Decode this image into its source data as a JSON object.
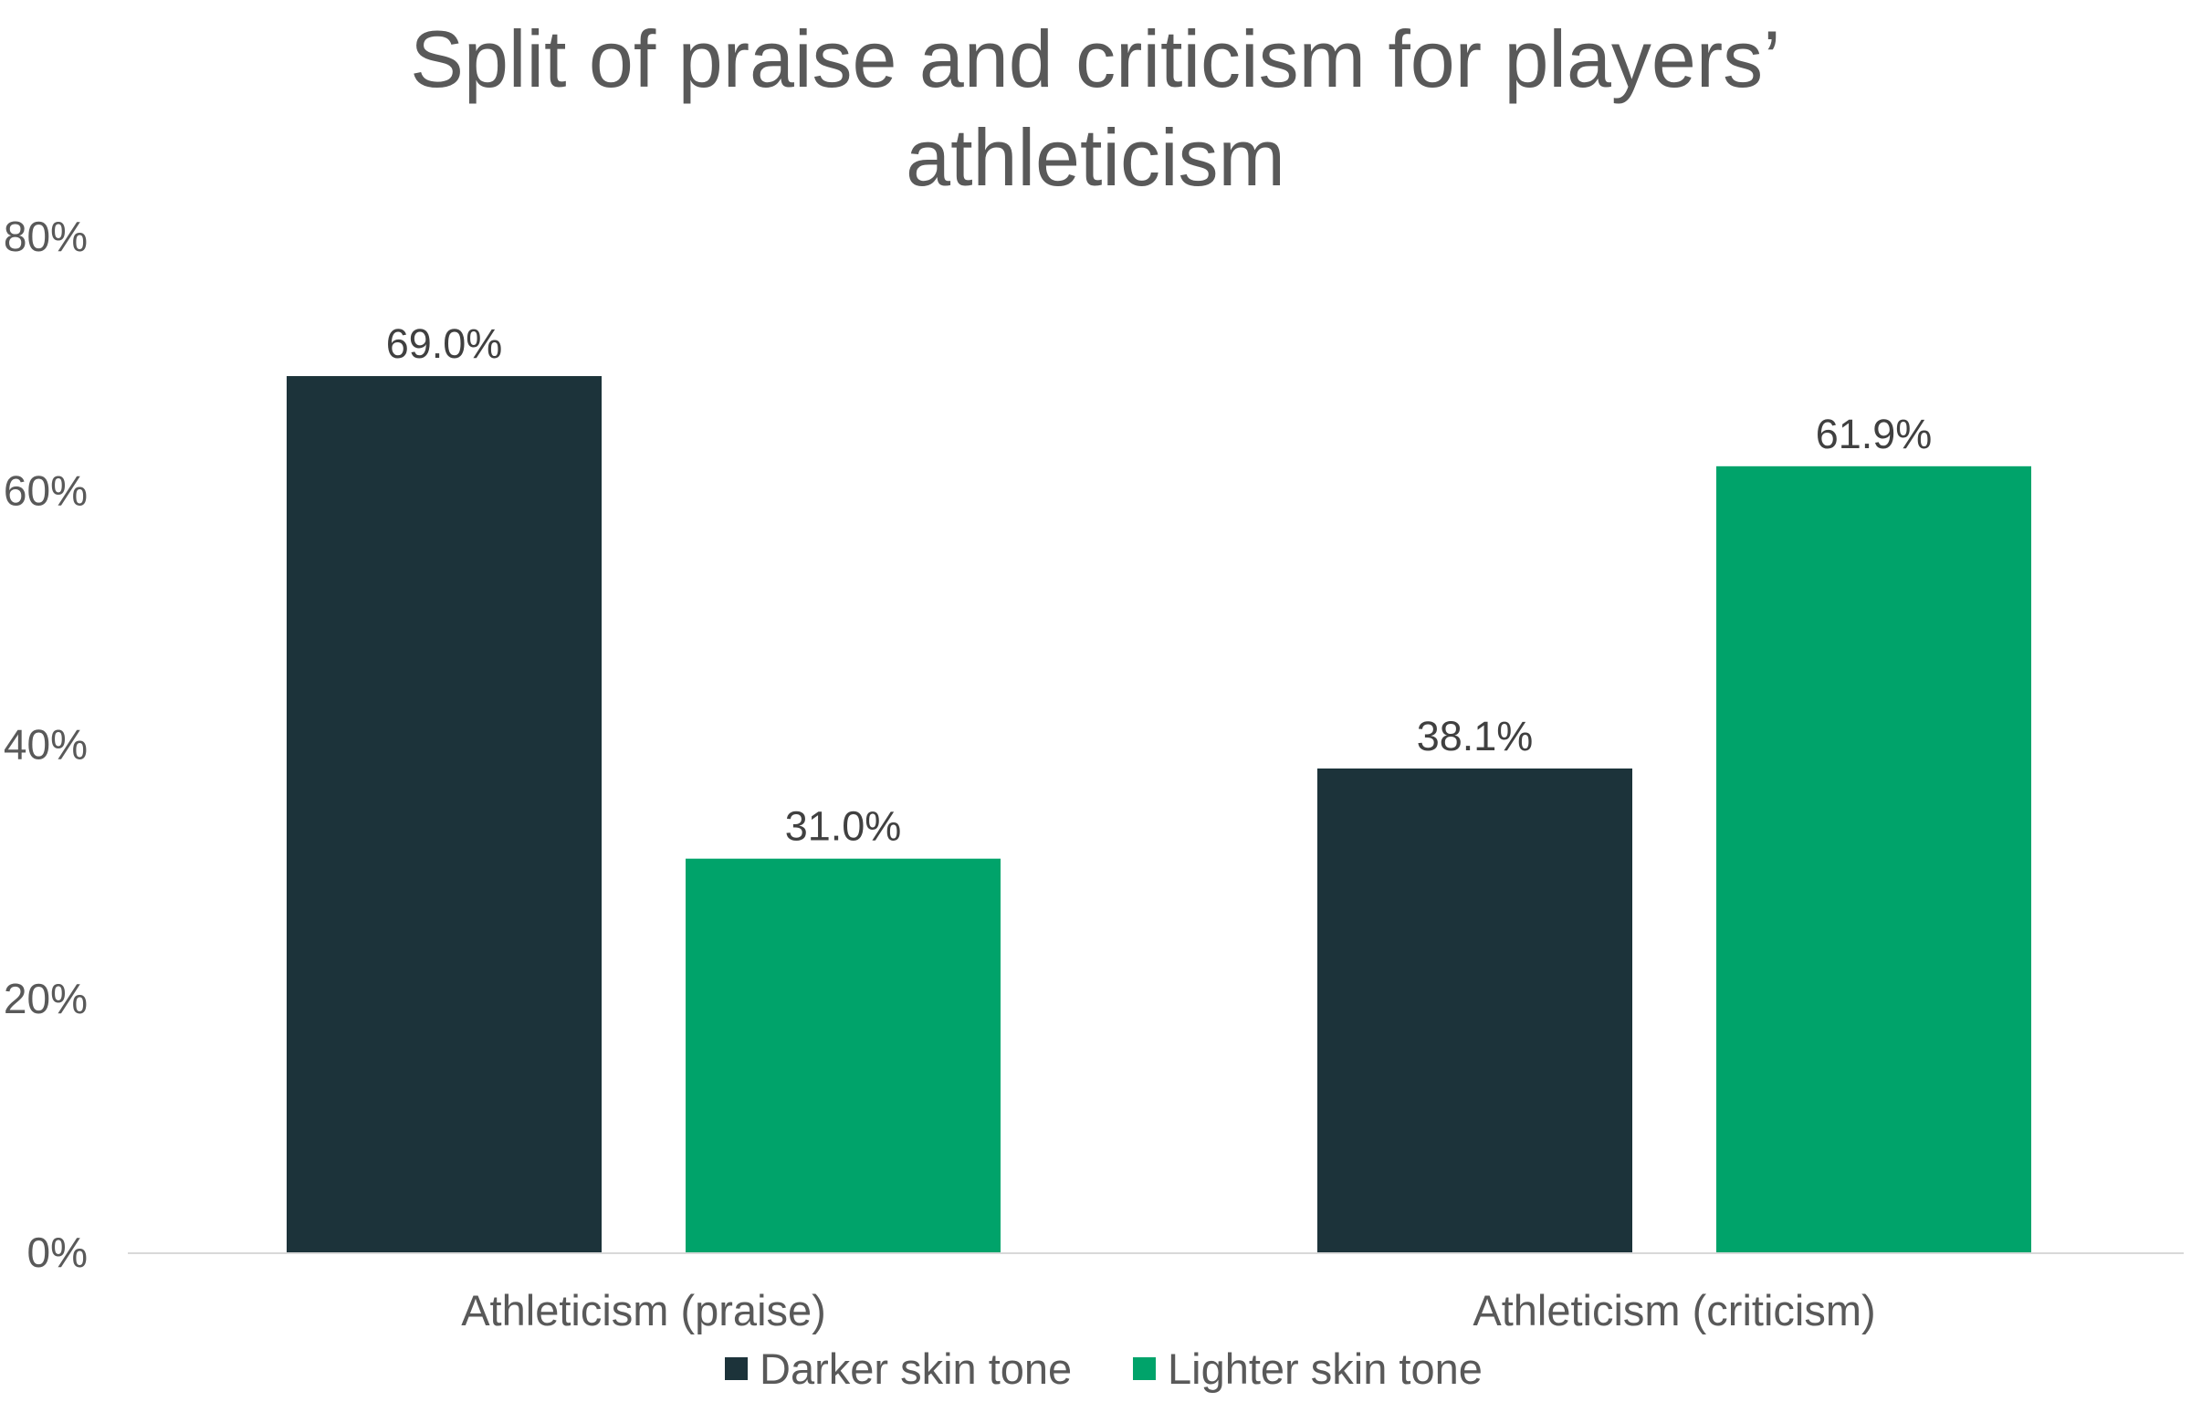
{
  "chart_data": {
    "type": "bar",
    "title_lines": [
      "Split of praise and criticism for players’",
      "athleticism"
    ],
    "categories": [
      "Athleticism (praise)",
      "Athleticism (criticism)"
    ],
    "series": [
      {
        "name": "Darker skin tone",
        "values": [
          69.0,
          38.1
        ],
        "labels": [
          "69.0%",
          "38.1%"
        ],
        "color": "#1c333a"
      },
      {
        "name": "Lighter skin tone",
        "values": [
          31.0,
          61.9
        ],
        "labels": [
          "31.0%",
          "61.9%"
        ],
        "color": "#00a36a"
      }
    ],
    "ylim": [
      0,
      80
    ],
    "yticks": [
      0,
      20,
      40,
      60,
      80
    ],
    "ytick_labels": [
      "0%",
      "20%",
      "40%",
      "60%",
      "80%"
    ],
    "grid": false,
    "legend_position": "bottom",
    "baseline_color": "#d9d9d9"
  }
}
